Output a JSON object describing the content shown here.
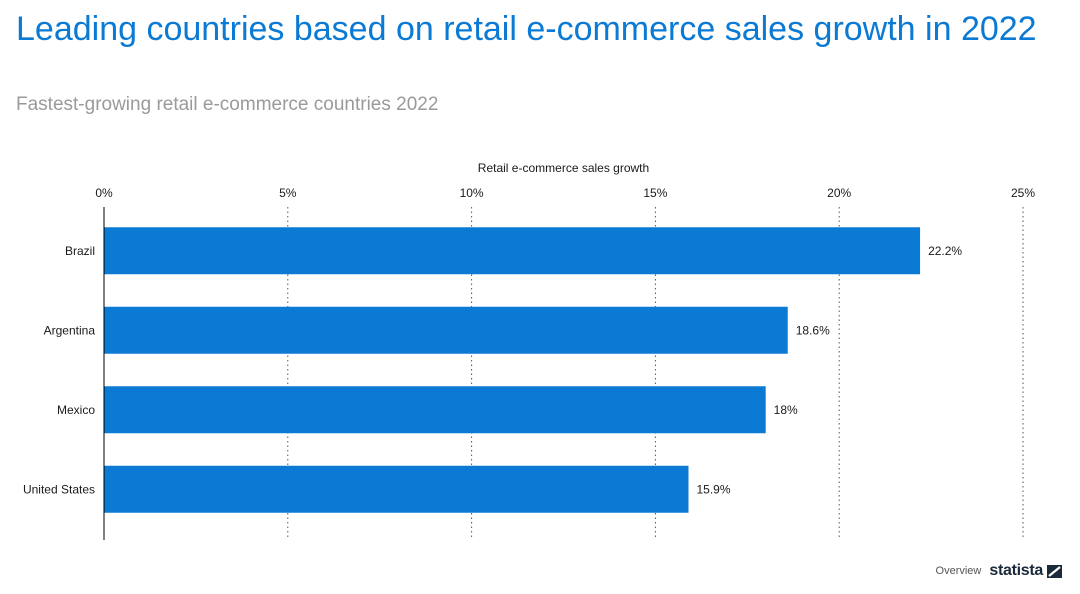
{
  "header": {
    "title": "Leading countries based on retail e-commerce sales growth in 2022",
    "subtitle": "Fastest-growing retail e-commerce countries 2022"
  },
  "footer": {
    "overview_label": "Overview",
    "brand_label": "statista",
    "brand_icon": "statista-logo-icon"
  },
  "colors": {
    "bar": "#0a7ad4",
    "title": "#0a7ad4",
    "subtitle": "#9a9a9a",
    "grid": "#555555"
  },
  "chart_data": {
    "type": "bar",
    "orientation": "horizontal",
    "title": "Leading countries based on retail e-commerce sales growth in 2022",
    "xlabel": "Retail e-commerce sales growth",
    "ylabel": "",
    "categories": [
      "Brazil",
      "Argentina",
      "Mexico",
      "United States"
    ],
    "values": [
      22.2,
      18.6,
      18,
      15.9
    ],
    "value_labels": [
      "22.2%",
      "18.6%",
      "18%",
      "15.9%"
    ],
    "xlim": [
      0,
      25
    ],
    "ticks": [
      0,
      5,
      10,
      15,
      20,
      25
    ],
    "tick_labels": [
      "0%",
      "5%",
      "10%",
      "15%",
      "20%",
      "25%"
    ],
    "grid": "dotted vertical",
    "axis_position": "top"
  }
}
